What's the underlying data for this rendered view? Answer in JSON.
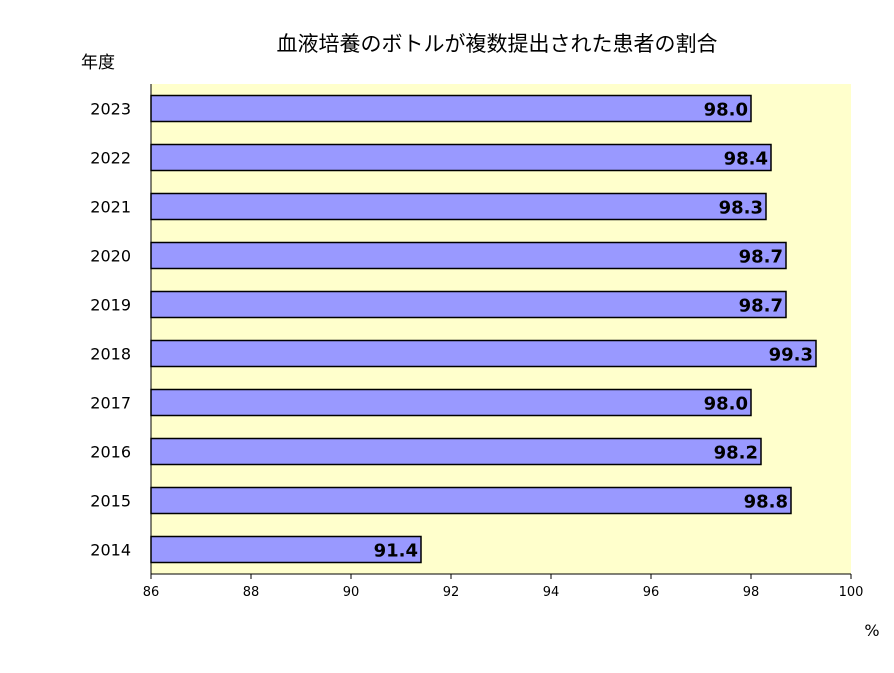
{
  "chart_data": {
    "type": "bar",
    "orientation": "horizontal",
    "title": "血液培養のボトルが複数提出された患者の割合",
    "ylabel": "年度",
    "xlabel": "%",
    "categories": [
      "2023",
      "2022",
      "2021",
      "2020",
      "2019",
      "2018",
      "2017",
      "2016",
      "2015",
      "2014"
    ],
    "values": [
      98.0,
      98.4,
      98.3,
      98.7,
      98.7,
      99.3,
      98.0,
      98.2,
      98.8,
      91.4
    ],
    "value_labels": [
      "98.0",
      "98.4",
      "98.3",
      "98.7",
      "98.7",
      "99.3",
      "98.0",
      "98.2",
      "98.8",
      "91.4"
    ],
    "xlim": [
      86,
      100
    ],
    "xticks": [
      "86",
      "88",
      "90",
      "92",
      "94",
      "96",
      "98",
      "100"
    ],
    "grid": false,
    "colors": {
      "bar": "#9999ff",
      "bar_border": "#000000",
      "plot_background": "#ffffcc"
    }
  }
}
